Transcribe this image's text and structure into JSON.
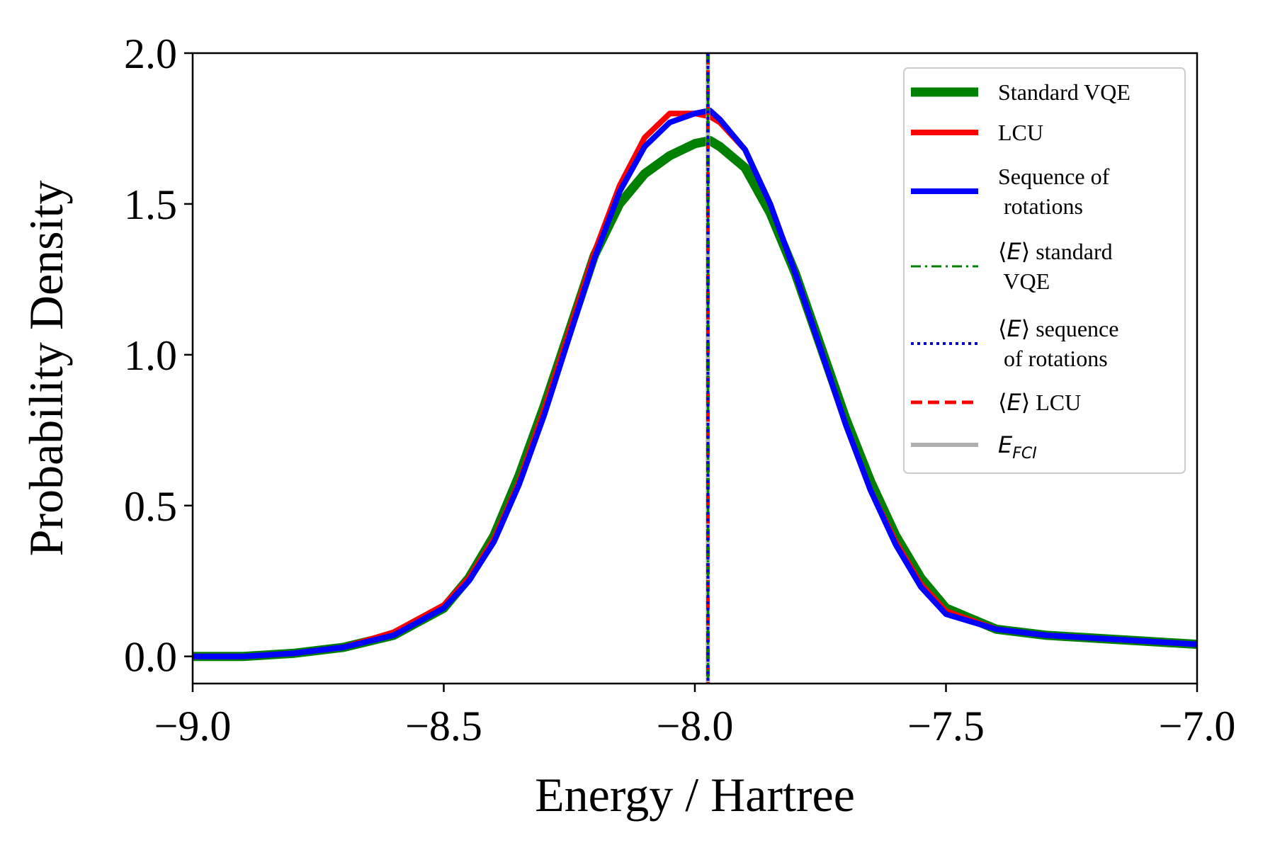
{
  "chart_data": {
    "type": "line",
    "title": "",
    "xlabel": "Energy / Hartree",
    "ylabel": "Probability Density",
    "xlim": [
      -9.0,
      -7.0
    ],
    "ylim": [
      -0.09,
      2.0
    ],
    "x_ticks": [
      -9.0,
      -8.5,
      -8.0,
      -7.5,
      -7.0
    ],
    "x_tick_labels": [
      "−9.0",
      "−8.5",
      "−8.0",
      "−7.5",
      "−7.0"
    ],
    "y_ticks": [
      0.0,
      0.5,
      1.0,
      1.5,
      2.0
    ],
    "y_tick_labels": [
      "0.0",
      "0.5",
      "1.0",
      "1.5",
      "2.0"
    ],
    "grid": false,
    "legend_position": "top-right",
    "series": [
      {
        "name": "Standard VQE",
        "style": "solid-thick",
        "color": "#008000",
        "x": [
          -9.0,
          -8.9,
          -8.8,
          -8.7,
          -8.6,
          -8.5,
          -8.45,
          -8.4,
          -8.35,
          -8.3,
          -8.25,
          -8.2,
          -8.15,
          -8.1,
          -8.05,
          -8.0,
          -7.97,
          -7.95,
          -7.9,
          -7.85,
          -7.8,
          -7.75,
          -7.7,
          -7.65,
          -7.6,
          -7.55,
          -7.5,
          -7.4,
          -7.3,
          -7.2,
          -7.1,
          -7.0
        ],
        "y": [
          0.0,
          0.0,
          0.01,
          0.03,
          0.07,
          0.16,
          0.26,
          0.4,
          0.6,
          0.83,
          1.08,
          1.33,
          1.5,
          1.6,
          1.66,
          1.7,
          1.71,
          1.69,
          1.62,
          1.47,
          1.27,
          1.03,
          0.79,
          0.58,
          0.4,
          0.26,
          0.16,
          0.09,
          0.07,
          0.06,
          0.05,
          0.04
        ]
      },
      {
        "name": "LCU",
        "style": "solid",
        "color": "#ff0000",
        "x": [
          -9.0,
          -8.9,
          -8.8,
          -8.7,
          -8.6,
          -8.5,
          -8.45,
          -8.4,
          -8.35,
          -8.3,
          -8.25,
          -8.2,
          -8.15,
          -8.1,
          -8.05,
          -8.0,
          -7.97,
          -7.95,
          -7.9,
          -7.85,
          -7.8,
          -7.75,
          -7.7,
          -7.65,
          -7.6,
          -7.55,
          -7.5,
          -7.4,
          -7.3,
          -7.2,
          -7.1,
          -7.0
        ],
        "y": [
          0.0,
          0.0,
          0.01,
          0.03,
          0.08,
          0.17,
          0.26,
          0.39,
          0.58,
          0.82,
          1.08,
          1.34,
          1.56,
          1.72,
          1.8,
          1.8,
          1.79,
          1.77,
          1.68,
          1.5,
          1.27,
          1.02,
          0.77,
          0.55,
          0.38,
          0.24,
          0.15,
          0.09,
          0.07,
          0.06,
          0.05,
          0.04
        ]
      },
      {
        "name": "Sequence of\n rotations",
        "style": "solid",
        "color": "#0000ff",
        "x": [
          -9.0,
          -8.9,
          -8.8,
          -8.7,
          -8.6,
          -8.5,
          -8.45,
          -8.4,
          -8.35,
          -8.3,
          -8.25,
          -8.2,
          -8.15,
          -8.1,
          -8.05,
          -8.0,
          -7.97,
          -7.95,
          -7.9,
          -7.85,
          -7.8,
          -7.75,
          -7.7,
          -7.65,
          -7.6,
          -7.55,
          -7.5,
          -7.4,
          -7.3,
          -7.2,
          -7.1,
          -7.0
        ],
        "y": [
          0.0,
          0.0,
          0.01,
          0.03,
          0.07,
          0.16,
          0.25,
          0.38,
          0.57,
          0.8,
          1.06,
          1.32,
          1.54,
          1.69,
          1.77,
          1.8,
          1.81,
          1.78,
          1.68,
          1.5,
          1.27,
          1.02,
          0.77,
          0.55,
          0.37,
          0.23,
          0.14,
          0.09,
          0.07,
          0.06,
          0.05,
          0.04
        ]
      },
      {
        "name": "⟨E⟩ standard\n VQE",
        "style": "vline-dashdot",
        "color": "#008000",
        "x": -7.974
      },
      {
        "name": "⟨E⟩ sequence\n of rotations",
        "style": "vline-dotted",
        "color": "#0000cc",
        "x": -7.974
      },
      {
        "name": "⟨E⟩ LCU",
        "style": "vline-dashed",
        "color": "#ff0000",
        "x": -7.974
      },
      {
        "name": "E_FCI",
        "style": "vline-solid",
        "color": "#b0b0b0",
        "x": -7.974
      }
    ]
  }
}
